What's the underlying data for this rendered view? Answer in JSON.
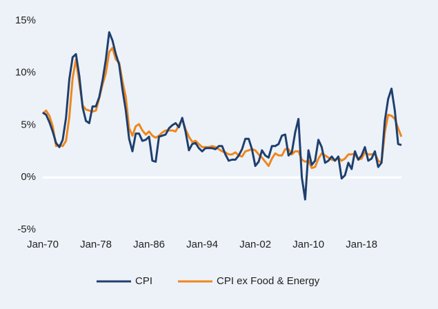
{
  "chart_data": {
    "type": "line",
    "categories": [
      "Jan-70",
      null,
      null,
      null,
      null,
      null,
      null,
      null,
      null,
      null,
      null,
      null,
      null,
      null,
      null,
      null,
      "Jan-78",
      null,
      null,
      null,
      null,
      null,
      null,
      null,
      null,
      null,
      null,
      null,
      null,
      null,
      null,
      null,
      "Jan-86",
      null,
      null,
      null,
      null,
      null,
      null,
      null,
      null,
      null,
      null,
      null,
      null,
      null,
      null,
      null,
      "Jan-94",
      null,
      null,
      null,
      null,
      null,
      null,
      null,
      null,
      null,
      null,
      null,
      null,
      null,
      null,
      null,
      "Jan-02",
      null,
      null,
      null,
      null,
      null,
      null,
      null,
      null,
      null,
      null,
      null,
      null,
      null,
      null,
      null,
      "Jan-10",
      null,
      null,
      null,
      null,
      null,
      null,
      null,
      null,
      null,
      null,
      null,
      null,
      null,
      null,
      null,
      "Jan-18",
      null,
      null,
      null,
      null,
      null,
      null,
      null,
      null,
      null,
      null,
      null,
      null
    ],
    "series": [
      {
        "name": "CPI",
        "color": "#1f3f6e",
        "values": [
          6.2,
          6.0,
          5.3,
          4.4,
          3.3,
          2.9,
          3.6,
          5.7,
          9.4,
          11.5,
          11.8,
          9.7,
          6.7,
          5.4,
          5.2,
          6.8,
          6.8,
          7.7,
          9.3,
          11.3,
          13.9,
          13.1,
          11.8,
          10.8,
          8.4,
          6.4,
          3.7,
          2.5,
          4.2,
          4.2,
          3.5,
          3.6,
          3.9,
          1.6,
          1.5,
          3.9,
          4.0,
          4.1,
          4.7,
          5.0,
          5.2,
          4.8,
          5.7,
          4.4,
          2.6,
          3.2,
          3.3,
          2.8,
          2.5,
          2.8,
          2.8,
          2.8,
          2.7,
          3.0,
          3.0,
          2.2,
          1.6,
          1.7,
          1.7,
          2.1,
          2.7,
          3.7,
          3.7,
          2.7,
          1.1,
          1.5,
          2.6,
          2.1,
          1.9,
          3.0,
          3.0,
          3.2,
          4.0,
          4.1,
          2.1,
          2.4,
          4.3,
          5.6,
          0.0,
          -2.1,
          2.6,
          1.2,
          1.6,
          3.6,
          2.9,
          1.4,
          1.6,
          2.0,
          1.6,
          2.0,
          -0.1,
          0.2,
          1.4,
          0.8,
          2.5,
          1.7,
          2.1,
          2.9,
          1.6,
          1.8,
          2.5,
          1.0,
          1.4,
          5.4,
          7.5,
          8.5,
          6.4,
          3.2,
          3.1
        ]
      },
      {
        "name": "CPI ex Food & Energy",
        "color": "#f0861c",
        "values": [
          6.1,
          6.4,
          5.9,
          4.9,
          3.0,
          3.1,
          3.0,
          3.5,
          5.8,
          9.5,
          11.3,
          9.0,
          6.9,
          6.5,
          6.4,
          6.3,
          6.4,
          7.6,
          8.9,
          10.0,
          12.0,
          12.4,
          11.3,
          11.0,
          9.2,
          7.7,
          4.7,
          4.0,
          4.9,
          5.1,
          4.5,
          4.1,
          4.4,
          4.0,
          3.8,
          4.0,
          4.3,
          4.5,
          4.5,
          4.5,
          4.4,
          5.0,
          5.6,
          4.6,
          3.9,
          3.4,
          3.5,
          3.2,
          2.9,
          2.9,
          2.9,
          3.0,
          2.9,
          2.7,
          2.5,
          2.4,
          2.2,
          2.2,
          2.4,
          2.1,
          2.0,
          2.5,
          2.6,
          2.7,
          2.6,
          2.2,
          1.9,
          1.5,
          1.1,
          1.8,
          2.3,
          2.1,
          2.1,
          2.7,
          2.7,
          2.2,
          2.5,
          2.5,
          1.7,
          1.5,
          1.6,
          0.9,
          1.0,
          1.8,
          2.3,
          2.1,
          1.9,
          1.7,
          1.6,
          1.9,
          1.6,
          1.8,
          2.2,
          2.2,
          2.3,
          1.7,
          1.8,
          2.4,
          2.2,
          2.2,
          2.3,
          1.6,
          1.4,
          4.3,
          6.0,
          5.9,
          5.6,
          4.7,
          3.9
        ]
      }
    ],
    "ylim": [
      -5,
      15
    ],
    "yticks": [
      {
        "value": -5,
        "label": "-5%"
      },
      {
        "value": 0,
        "label": "0%"
      },
      {
        "value": 5,
        "label": "5%"
      },
      {
        "value": 10,
        "label": "10%"
      },
      {
        "value": 15,
        "label": "15%"
      }
    ],
    "zero_line": true,
    "legend": "bottom"
  }
}
